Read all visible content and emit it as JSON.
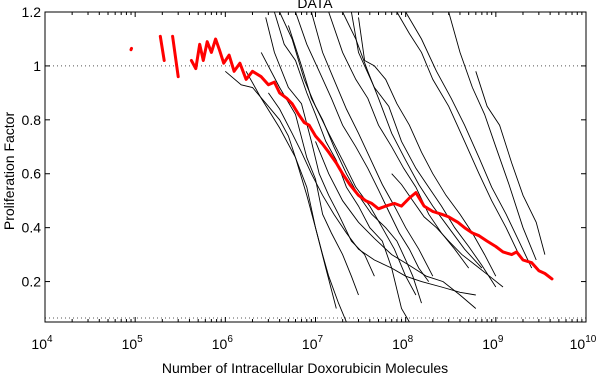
{
  "chart_data": {
    "type": "line",
    "title": "DATA",
    "xlabel": "Number of Intracellular Doxorubicin Molecules",
    "ylabel": "Proliferation Factor",
    "xscale": "log",
    "xlim": [
      10000,
      10000000000
    ],
    "ylim": [
      0.05,
      1.2
    ],
    "x_tick_labels": [
      {
        "base": "10",
        "exp": "4",
        "value": 10000
      },
      {
        "base": "10",
        "exp": "5",
        "value": 100000
      },
      {
        "base": "10",
        "exp": "6",
        "value": 1000000
      },
      {
        "base": "10",
        "exp": "7",
        "value": 10000000
      },
      {
        "base": "10",
        "exp": "8",
        "value": 100000000
      },
      {
        "base": "10",
        "exp": "9",
        "value": 1000000000
      },
      {
        "base": "10",
        "exp": "10",
        "value": 10000000000
      }
    ],
    "y_ticks": [
      {
        "label": "0.2",
        "value": 0.2
      },
      {
        "label": "0.4",
        "value": 0.4
      },
      {
        "label": "0.6",
        "value": 0.6
      },
      {
        "label": "0.8",
        "value": 0.8
      },
      {
        "label": "1",
        "value": 1.0
      },
      {
        "label": "1.2",
        "value": 1.2
      }
    ],
    "reference_lines": [
      1.0,
      0.065
    ],
    "grid": false,
    "legend": "none",
    "colors": {
      "mean": "#ff0000",
      "traces": "#000000",
      "reference": "#555555"
    },
    "mean_series": {
      "color": "#ff0000",
      "segments": [
        {
          "x": [
            90000,
            91000
          ],
          "y": [
            1.06,
            1.065
          ]
        },
        {
          "x": [
            190000,
            210000
          ],
          "y": [
            1.11,
            1.02
          ]
        },
        {
          "x": [
            260000,
            300000
          ],
          "y": [
            1.11,
            0.96
          ]
        },
        {
          "x": [
            420000,
            470000,
            520000,
            570000,
            630000,
            700000,
            780000,
            860000,
            960000,
            1100000,
            1250000,
            1450000,
            1700000,
            2000000,
            2500000,
            3000000,
            3500000,
            4000000,
            4800000,
            5500000,
            6500000,
            7500000,
            8500000,
            10000000,
            12000000,
            14000000,
            17000000,
            20000000,
            24000000,
            30000000,
            36000000,
            42000000,
            50000000,
            60000000,
            75000000,
            90000000,
            110000000,
            130000000,
            160000000,
            200000000,
            250000000,
            300000000,
            380000000,
            450000000,
            550000000,
            650000000,
            800000000,
            1000000000,
            1200000000,
            1500000000,
            1700000000,
            2000000000,
            2500000000,
            3000000000,
            3500000000,
            4200000000
          ],
          "y": [
            1.02,
            0.99,
            1.08,
            1.02,
            1.09,
            1.05,
            1.1,
            1.06,
            1.01,
            1.04,
            0.98,
            1.01,
            0.95,
            0.98,
            0.96,
            0.93,
            0.94,
            0.9,
            0.88,
            0.86,
            0.82,
            0.79,
            0.78,
            0.74,
            0.71,
            0.68,
            0.64,
            0.6,
            0.56,
            0.52,
            0.5,
            0.49,
            0.47,
            0.48,
            0.49,
            0.48,
            0.51,
            0.53,
            0.48,
            0.46,
            0.45,
            0.44,
            0.42,
            0.4,
            0.38,
            0.37,
            0.35,
            0.33,
            0.31,
            0.3,
            0.31,
            0.28,
            0.27,
            0.24,
            0.23,
            0.21
          ]
        }
      ]
    },
    "traces": [
      {
        "x": [
          1000000,
          1500000,
          2000000,
          3000000,
          4000000,
          5000000,
          6000000,
          8000000,
          10000000,
          12000000,
          14000000,
          18000000,
          22000000
        ],
        "y": [
          0.98,
          0.93,
          0.92,
          0.85,
          0.8,
          0.74,
          0.66,
          0.55,
          0.4,
          0.3,
          0.22,
          0.12,
          0.05
        ]
      },
      {
        "x": [
          1700000,
          2500000,
          4000000,
          6000000,
          8000000,
          10000000,
          13000000,
          17000000
        ],
        "y": [
          0.98,
          0.88,
          0.77,
          0.66,
          0.52,
          0.4,
          0.25,
          0.1
        ]
      },
      {
        "x": [
          2500000,
          4000000,
          6000000,
          8000000,
          10000000,
          12000000,
          15000000,
          20000000,
          25000000,
          30000000
        ],
        "y": [
          1.05,
          0.92,
          0.82,
          0.66,
          0.58,
          0.45,
          0.38,
          0.3,
          0.22,
          0.15
        ]
      },
      {
        "x": [
          2800000,
          3500000,
          5000000,
          7000000,
          9000000,
          11000000,
          14000000,
          18000000,
          25000000,
          35000000,
          45000000
        ],
        "y": [
          1.18,
          1.05,
          0.92,
          0.86,
          0.72,
          0.6,
          0.52,
          0.45,
          0.35,
          0.3,
          0.22
        ]
      },
      {
        "x": [
          3500000,
          4500000,
          6000000,
          8000000,
          10000000,
          13000000,
          17000000,
          22000000,
          30000000,
          40000000,
          55000000,
          70000000,
          90000000,
          110000000
        ],
        "y": [
          1.2,
          1.08,
          1.02,
          0.9,
          0.82,
          0.72,
          0.65,
          0.55,
          0.48,
          0.4,
          0.35,
          0.25,
          0.1,
          0.05
        ]
      },
      {
        "x": [
          4000000,
          5500000,
          7500000,
          10000000,
          14000000,
          20000000,
          28000000,
          40000000,
          55000000,
          75000000,
          100000000,
          130000000
        ],
        "y": [
          1.2,
          1.1,
          0.95,
          0.85,
          0.75,
          0.65,
          0.55,
          0.48,
          0.4,
          0.32,
          0.22,
          0.15
        ]
      },
      {
        "x": [
          5000000,
          7000000,
          9000000,
          12000000,
          16000000,
          22000000,
          30000000,
          42000000,
          60000000,
          80000000,
          100000000,
          120000000,
          150000000
        ],
        "y": [
          1.15,
          1.0,
          0.88,
          0.8,
          0.7,
          0.6,
          0.52,
          0.45,
          0.4,
          0.35,
          0.28,
          0.22,
          0.12
        ]
      },
      {
        "x": [
          6000000,
          8000000,
          11000000,
          15000000,
          20000000,
          28000000,
          38000000,
          50000000,
          65000000,
          85000000,
          110000000,
          140000000,
          180000000
        ],
        "y": [
          1.2,
          1.08,
          0.98,
          0.88,
          0.78,
          0.7,
          0.62,
          0.54,
          0.46,
          0.38,
          0.32,
          0.25,
          0.2
        ]
      },
      {
        "x": [
          9000000,
          12000000,
          16000000,
          22000000,
          30000000,
          40000000,
          55000000,
          75000000,
          100000000,
          140000000,
          200000000
        ],
        "y": [
          1.2,
          1.05,
          0.95,
          0.84,
          0.75,
          0.66,
          0.56,
          0.48,
          0.4,
          0.32,
          0.22
        ]
      },
      {
        "x": [
          14000000,
          20000000,
          28000000,
          38000000,
          50000000,
          70000000,
          95000000,
          130000000,
          180000000,
          250000000,
          350000000,
          500000000
        ],
        "y": [
          1.2,
          1.05,
          0.95,
          0.88,
          0.78,
          0.7,
          0.62,
          0.55,
          0.45,
          0.38,
          0.32,
          0.25
        ]
      },
      {
        "x": [
          20000000,
          28000000,
          38000000,
          50000000,
          70000000,
          100000000,
          140000000,
          200000000,
          300000000,
          450000000,
          700000000
        ],
        "y": [
          1.2,
          1.1,
          0.98,
          0.88,
          0.75,
          0.65,
          0.56,
          0.48,
          0.4,
          0.32,
          0.25
        ]
      },
      {
        "x": [
          25000000,
          30000000,
          45000000,
          65000000,
          90000000,
          130000000,
          180000000,
          250000000,
          350000000,
          500000000,
          700000000,
          1000000000
        ],
        "y": [
          1.2,
          1.05,
          0.92,
          0.85,
          0.72,
          0.62,
          0.55,
          0.48,
          0.4,
          0.33,
          0.26,
          0.18
        ]
      },
      {
        "x": [
          30000000,
          35000000,
          45000000,
          60000000,
          80000000,
          110000000,
          150000000,
          200000000,
          280000000,
          400000000,
          550000000,
          750000000,
          1000000000
        ],
        "y": [
          1.18,
          1.02,
          1.0,
          0.95,
          0.86,
          0.78,
          0.68,
          0.6,
          0.52,
          0.45,
          0.38,
          0.3,
          0.22
        ]
      },
      {
        "x": [
          80000000,
          110000000,
          150000000,
          200000000,
          300000000,
          450000000,
          650000000,
          900000000,
          1300000000,
          1800000000
        ],
        "y": [
          1.2,
          1.12,
          1.05,
          0.95,
          0.85,
          0.72,
          0.6,
          0.5,
          0.4,
          0.3
        ]
      },
      {
        "x": [
          100000000,
          150000000,
          220000000,
          320000000,
          450000000,
          650000000,
          900000000,
          1300000000,
          1800000000,
          2500000000
        ],
        "y": [
          1.2,
          1.1,
          0.98,
          0.88,
          0.78,
          0.66,
          0.55,
          0.45,
          0.35,
          0.25
        ]
      },
      {
        "x": [
          300000000,
          400000000,
          550000000,
          750000000,
          1000000000,
          1400000000,
          2000000000,
          2800000000
        ],
        "y": [
          1.2,
          1.05,
          0.92,
          0.82,
          0.7,
          0.56,
          0.4,
          0.28
        ]
      },
      {
        "x": [
          600000000,
          800000000,
          1100000000,
          1500000000,
          2000000000,
          2800000000,
          3500000000
        ],
        "y": [
          0.98,
          0.85,
          0.78,
          0.64,
          0.52,
          0.42,
          0.3
        ]
      },
      {
        "x": [
          3000000,
          4000000,
          5500000,
          7000000,
          9000000,
          12000000,
          16000000,
          22000000,
          30000000,
          45000000,
          70000000,
          100000000,
          150000000,
          250000000,
          400000000,
          600000000
        ],
        "y": [
          0.9,
          0.84,
          0.75,
          0.68,
          0.6,
          0.52,
          0.45,
          0.38,
          0.32,
          0.28,
          0.25,
          0.22,
          0.2,
          0.18,
          0.16,
          0.15
        ]
      },
      {
        "x": [
          10000000,
          14000000,
          20000000,
          30000000,
          45000000,
          70000000,
          110000000,
          170000000,
          260000000,
          400000000,
          600000000
        ],
        "y": [
          0.72,
          0.6,
          0.5,
          0.42,
          0.36,
          0.3,
          0.26,
          0.22,
          0.2,
          0.15,
          0.1
        ]
      },
      {
        "x": [
          70000000,
          90000000,
          120000000,
          160000000,
          220000000,
          300000000,
          420000000,
          600000000,
          850000000,
          1200000000
        ],
        "y": [
          0.6,
          0.56,
          0.5,
          0.44,
          0.4,
          0.35,
          0.3,
          0.26,
          0.22,
          0.18
        ]
      }
    ]
  }
}
